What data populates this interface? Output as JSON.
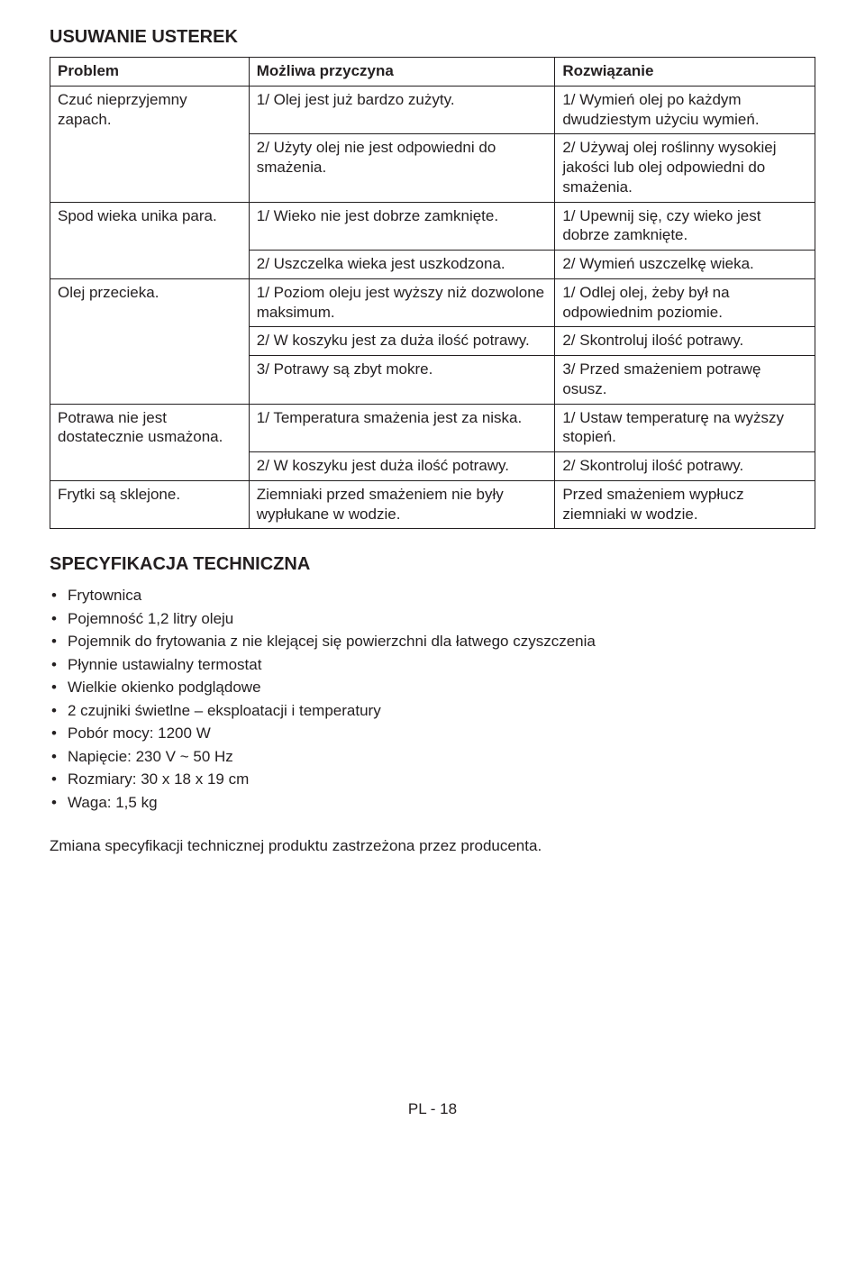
{
  "titles": {
    "troubleshooting": "USUWANIE USTEREK",
    "spec": "SPECYFIKACJA TECHNICZNA"
  },
  "table": {
    "headers": {
      "problem": "Problem",
      "cause": "Możliwa przyczyna",
      "solution": "Rozwiązanie"
    },
    "rows": {
      "r0": {
        "p": "Czuć nieprzyjemny zapach.",
        "c": "1/ Olej jest już bardzo zużyty.",
        "s": "1/ Wymień olej po każdym dwudziestym użyciu wymień."
      },
      "r1": {
        "c": "2/ Użyty olej nie jest odpowiedni do smażenia.",
        "s": "2/ Używaj olej roślinny wysokiej jakości lub olej odpowiedni do smażenia."
      },
      "r2": {
        "p": "Spod wieka unika para.",
        "c": "1/ Wieko nie jest dobrze zamknięte.",
        "s": "1/ Upewnij się, czy wieko jest dobrze zamknięte."
      },
      "r3": {
        "c": "2/ Uszczelka wieka jest uszkodzona.",
        "s": "2/ Wymień uszczelkę wieka."
      },
      "r4": {
        "p": "Olej przecieka.",
        "c": "1/ Poziom oleju jest wyższy niż dozwolone maksimum.",
        "s": "1/ Odlej olej, żeby był na odpowiednim poziomie."
      },
      "r5": {
        "c": "2/ W koszyku jest za duża ilość potrawy.",
        "s": "2/ Skontroluj ilość potrawy."
      },
      "r6": {
        "c": "3/ Potrawy są zbyt mokre.",
        "s": "3/ Przed smażeniem potrawę osusz."
      },
      "r7": {
        "p": "Potrawa nie jest dostatecznie usmażona.",
        "c": "1/ Temperatura smażenia jest za niska.",
        "s": "1/ Ustaw temperaturę na wyższy stopień."
      },
      "r8": {
        "c": "2/ W koszyku jest duża ilość potrawy.",
        "s": "2/ Skontroluj ilość potrawy."
      },
      "r9": {
        "p": "Frytki są sklejone.",
        "c": "Ziemniaki przed smażeniem nie były wypłukane w wodzie.",
        "s": "Przed smażeniem wypłucz ziemniaki w wodzie."
      }
    }
  },
  "spec_list": {
    "i0": "Frytownica",
    "i1": "Pojemność 1,2 litry oleju",
    "i2": "Pojemnik do frytowania z nie klejącej się powierzchni dla łatwego czyszczenia",
    "i3": "Płynnie ustawialny termostat",
    "i4": "Wielkie okienko podglądowe",
    "i5": "2 czujniki świetlne – eksploatacji i temperatury",
    "i6": "Pobór mocy: 1200 W",
    "i7": "Napięcie: 230 V ~ 50 Hz",
    "i8": "Rozmiary: 30 x 18 x 19 cm",
    "i9": "Waga: 1,5 kg"
  },
  "note": "Zmiana specyfikacji technicznej produktu zastrzeżona przez producenta.",
  "page_number": "PL - 18"
}
